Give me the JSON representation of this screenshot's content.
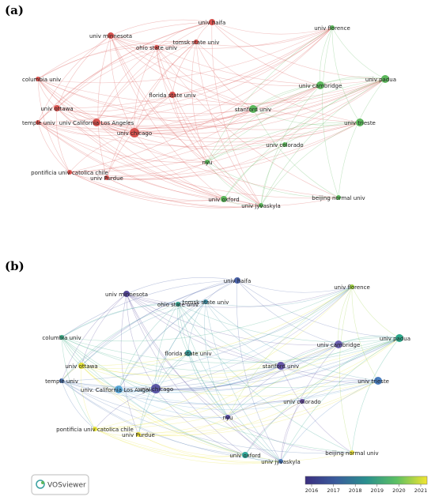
{
  "panels": [
    {
      "label": "(a)",
      "nodes": [
        {
          "label": "univ haifa",
          "color": "#d9534f"
        },
        {
          "label": "univ minnesota",
          "color": "#d9534f"
        },
        {
          "label": "tomsk state univ",
          "color": "#d9534f"
        },
        {
          "label": "ohio state univ",
          "color": "#d9534f"
        },
        {
          "label": "columbia univ",
          "color": "#d9534f"
        },
        {
          "label": "univ ottawa",
          "color": "#d9534f"
        },
        {
          "label": "florida state univ",
          "color": "#d9534f"
        },
        {
          "label": "temple univ",
          "color": "#d9534f"
        },
        {
          "label": "univ California Los Angeles",
          "color": "#d9534f"
        },
        {
          "label": "univ chicago",
          "color": "#d9534f"
        },
        {
          "label": "pontificia univ catolica chile",
          "color": "#d9534f"
        },
        {
          "label": "univ Purdue",
          "color": "#d9534f"
        },
        {
          "label": "univ florence",
          "color": "#5cb85c"
        },
        {
          "label": "univ padua",
          "color": "#5cb85c"
        },
        {
          "label": "univ cambridge",
          "color": "#5cb85c"
        },
        {
          "label": "stanford univ",
          "color": "#5cb85c"
        },
        {
          "label": "univ trieste",
          "color": "#5cb85c"
        },
        {
          "label": "univ colorado",
          "color": "#5cb85c"
        },
        {
          "label": "nyu",
          "color": "#5cb85c"
        },
        {
          "label": "univ oxford",
          "color": "#5cb85c"
        },
        {
          "label": "univ jyvaskyla",
          "color": "#5cb85c"
        },
        {
          "label": "beijing normal univ",
          "color": "#5cb85c"
        }
      ]
    },
    {
      "label": "(b)",
      "nodes": [
        {
          "label": "univ haifa",
          "color": "#4a62a8"
        },
        {
          "label": "univ minnesota",
          "color": "#55479a"
        },
        {
          "label": "tomsk state univ",
          "color": "#3e8fa6"
        },
        {
          "label": "ohio state univ",
          "color": "#35a38f"
        },
        {
          "label": "columbia univ",
          "color": "#3aab85"
        },
        {
          "label": "univ ottawa",
          "color": "#e4e43a"
        },
        {
          "label": "florida state univ",
          "color": "#3a9a98"
        },
        {
          "label": "temple univ",
          "color": "#4a72b0"
        },
        {
          "label": "univ. California Los Angeles",
          "color": "#5aa8d8"
        },
        {
          "label": "univ chicago",
          "color": "#5a57a6"
        },
        {
          "label": "pontificia univ catolica chile",
          "color": "#e8e43a"
        },
        {
          "label": "univ Purdue",
          "color": "#eee13a"
        },
        {
          "label": "univ florence",
          "color": "#9cd040"
        },
        {
          "label": "univ padua",
          "color": "#2ea88a"
        },
        {
          "label": "univ cambridge",
          "color": "#6a60b0"
        },
        {
          "label": "stanford univ",
          "color": "#6656a8"
        },
        {
          "label": "univ trieste",
          "color": "#4a7fc0"
        },
        {
          "label": "univ colorado",
          "color": "#6a4fa0"
        },
        {
          "label": "nyu",
          "color": "#5548a0"
        },
        {
          "label": "univ oxford",
          "color": "#34a89a"
        },
        {
          "label": "univ jyvaskyla",
          "color": "#4a78b8"
        },
        {
          "label": "beijing normal univ",
          "color": "#e8e040"
        }
      ]
    }
  ],
  "colorbar": {
    "ticks": [
      2016,
      2017,
      2018,
      2019,
      2020,
      2021
    ]
  },
  "brand": "VOSviewer"
}
